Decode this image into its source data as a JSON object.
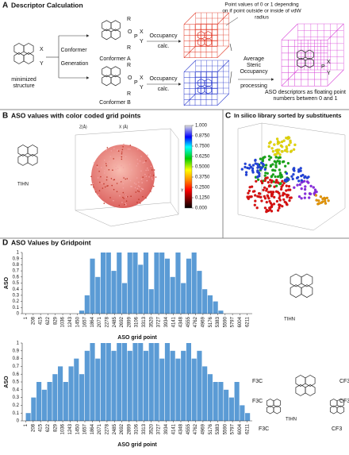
{
  "panel_a": {
    "letter": "A",
    "title": "Descriptor Calculation",
    "minimized_label": [
      "minimized",
      "structure"
    ],
    "conformer_label": "Conformer",
    "generation_label": "Generation",
    "conformer_a": "Conformer A",
    "conformer_b": "Conformer B",
    "occupancy": "Occupancy",
    "calc": "calc.",
    "point_note": [
      "Point values of 0 or 1 depending",
      "on if point outside or inside of vdW",
      "radius"
    ],
    "average": [
      "Average",
      "Steric",
      "Occupancy"
    ],
    "processing": "processing",
    "aso_note": [
      "ASO descriptors as floating point",
      "numbers between 0 and 1"
    ],
    "atoms": {
      "r": "R",
      "o": "O",
      "p": "P",
      "x": "X",
      "y": "Y"
    }
  },
  "panel_b": {
    "letter": "B",
    "title": "ASO values with color coded grid points",
    "molecule_label": "TIHN",
    "x_axis": "X (Å)",
    "y_axis": "Y (Å)",
    "z_axis": "Z(Å)",
    "colorbar_ticks": [
      {
        "value": 1,
        "label": "1.000"
      },
      {
        "value": 0.875,
        "label": "0.8750"
      },
      {
        "value": 0.75,
        "label": "0.7500"
      },
      {
        "value": 0.625,
        "label": "0.6250"
      },
      {
        "value": 0.5,
        "label": "0.5000"
      },
      {
        "value": 0.375,
        "label": "0.3750"
      },
      {
        "value": 0.25,
        "label": "0.2500"
      },
      {
        "value": 0.125,
        "label": "0.1250"
      },
      {
        "value": 0,
        "label": "0.000"
      }
    ]
  },
  "panel_c": {
    "letter": "C",
    "title": "In silico library sorted by substituents"
  },
  "panel_d": {
    "letter": "D",
    "title": "ASO Values by Gridpoint",
    "molecule_label": "TIHN",
    "cf3_left": "F3C",
    "cf3_right": "CF3"
  },
  "chart_data": [
    {
      "type": "bar",
      "ylabel": "ASO",
      "xlabel": "ASO grid point",
      "color": "#5b9bd5",
      "x": [
        1,
        151,
        301,
        451,
        601,
        751,
        901,
        1051,
        1201,
        1351,
        1501,
        1651,
        1801,
        1951,
        2101,
        2251,
        2401,
        2551,
        2701,
        2851,
        3001,
        3151,
        3301,
        3451,
        3601,
        3751,
        3901,
        4051,
        4201,
        4351,
        4501,
        4651,
        4801,
        4951,
        5101,
        5251,
        5401,
        5551,
        5701,
        5851,
        6001,
        6151
      ],
      "values": [
        0,
        0,
        0,
        0,
        0,
        0,
        0,
        0,
        0,
        0,
        0.05,
        0.3,
        0.9,
        0.6,
        1,
        1,
        0.7,
        1,
        0.5,
        1,
        1,
        0.8,
        1,
        0.4,
        1,
        1,
        0.9,
        0.6,
        1,
        0.5,
        0.9,
        1,
        0.7,
        0.4,
        0.3,
        0.2,
        0.05,
        0,
        0,
        0,
        0,
        0
      ],
      "xlim": [
        -100,
        6350
      ],
      "ylim": [
        0,
        1
      ],
      "xticks": [
        1,
        208,
        415,
        622,
        829,
        1036,
        1243,
        1450,
        1657,
        1864,
        2071,
        2278,
        2485,
        2692,
        2899,
        3106,
        3313,
        3520,
        3727,
        3934,
        4141,
        4348,
        4555,
        4762,
        4969,
        5176,
        5383,
        5590,
        5797,
        6004,
        6211
      ],
      "yticks": [
        0,
        0.1,
        0.2,
        0.3,
        0.4,
        0.5,
        0.6,
        0.7,
        0.8,
        0.9,
        1
      ]
    },
    {
      "type": "bar",
      "ylabel": "ASO",
      "xlabel": "ASO grid point",
      "color": "#5b9bd5",
      "x": [
        1,
        151,
        301,
        451,
        601,
        751,
        901,
        1051,
        1201,
        1351,
        1501,
        1651,
        1801,
        1951,
        2101,
        2251,
        2401,
        2551,
        2701,
        2851,
        3001,
        3151,
        3301,
        3451,
        3601,
        3751,
        3901,
        4051,
        4201,
        4351,
        4501,
        4651,
        4801,
        4951,
        5101,
        5251,
        5401,
        5551,
        5701,
        5851,
        6001,
        6151
      ],
      "values": [
        0.1,
        0.3,
        0.5,
        0.4,
        0.5,
        0.6,
        0.7,
        0.5,
        0.7,
        0.8,
        0.6,
        0.9,
        1,
        0.8,
        1,
        1,
        0.9,
        1,
        1,
        0.9,
        1,
        1,
        0.9,
        1,
        1,
        0.8,
        1,
        0.9,
        0.8,
        0.9,
        1,
        0.8,
        0.9,
        0.7,
        0.6,
        0.5,
        0.5,
        0.4,
        0.3,
        0.5,
        0.2,
        0.1
      ],
      "xlim": [
        -100,
        6350
      ],
      "ylim": [
        0,
        1
      ],
      "xticks": [
        1,
        208,
        415,
        622,
        829,
        1036,
        1243,
        1450,
        1657,
        1864,
        2071,
        2278,
        2485,
        2692,
        2899,
        3106,
        3313,
        3520,
        3727,
        3934,
        4141,
        4348,
        4555,
        4762,
        4969,
        5176,
        5383,
        5590,
        5797,
        6004,
        6211
      ],
      "yticks": [
        0,
        0.1,
        0.2,
        0.3,
        0.4,
        0.5,
        0.6,
        0.7,
        0.8,
        0.9,
        1
      ]
    }
  ]
}
